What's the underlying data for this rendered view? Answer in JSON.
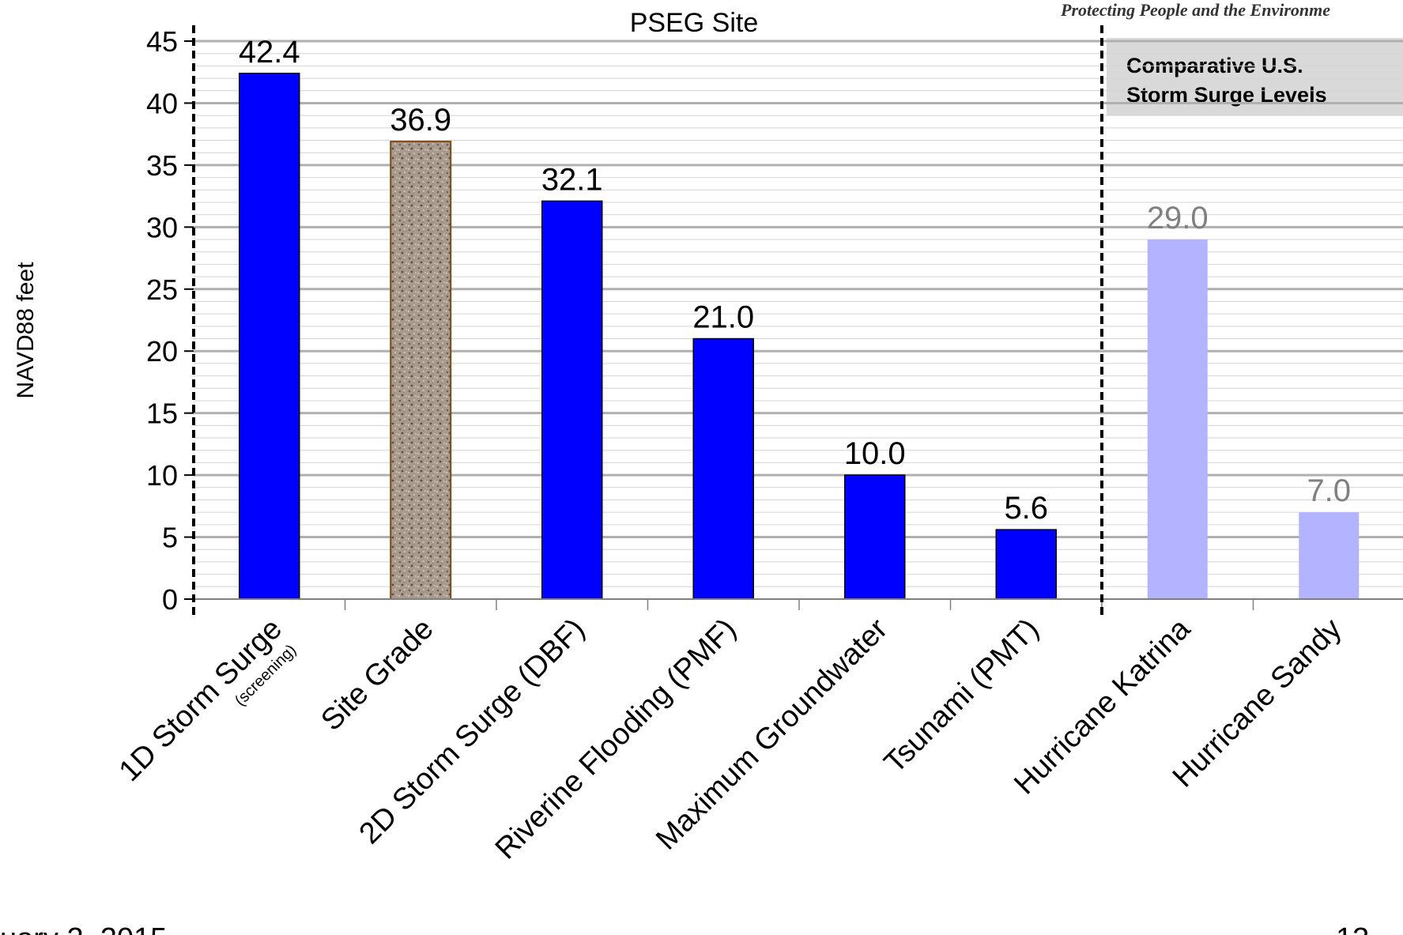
{
  "page": {
    "tagline": "Protecting People and the Environme",
    "footer_left": "uary 2, 2015",
    "footer_right": "13"
  },
  "chart_data": {
    "type": "bar",
    "title": "PSEG Site",
    "ylabel": "NAVD88 feet",
    "xlabel": "",
    "ylim": [
      0,
      45
    ],
    "yticks": [
      0,
      5,
      10,
      15,
      20,
      25,
      30,
      35,
      40,
      45
    ],
    "minor_grid_step": 1,
    "grid": true,
    "categories": [
      "1D Storm Surge",
      "Site Grade",
      "2D Storm Surge (DBF)",
      "Riverine Flooding (PMF)",
      "Maximum Groundwater",
      "Tsunami (PMT)",
      "Hurricane Katrina",
      "Hurricane Sandy"
    ],
    "category_sublabels": [
      "(screening)",
      "",
      "",
      "",
      "",
      "",
      "",
      ""
    ],
    "values": [
      42.4,
      36.9,
      32.1,
      21.0,
      10.0,
      5.6,
      29.0,
      7.0
    ],
    "value_labels": [
      "42.4",
      "36.9",
      "32.1",
      "21.0",
      "10.0",
      "5.6",
      "29.0",
      "7.0"
    ],
    "bar_styles": [
      "primary",
      "texture",
      "primary",
      "primary",
      "primary",
      "primary",
      "comparative",
      "comparative"
    ],
    "colors": {
      "primary": "#0000ff",
      "texture": "#a89a8c",
      "texture_border": "#7a4a1a",
      "comparative": "#b3b3ff",
      "comparative_label": "#808080",
      "grid_major": "#b0b0b0",
      "grid_minor": "#d4d4d4",
      "banner_bg": "#d9d9d9"
    },
    "comparative_banner": [
      "Comparative U.S.",
      "Storm Surge Levels"
    ]
  }
}
